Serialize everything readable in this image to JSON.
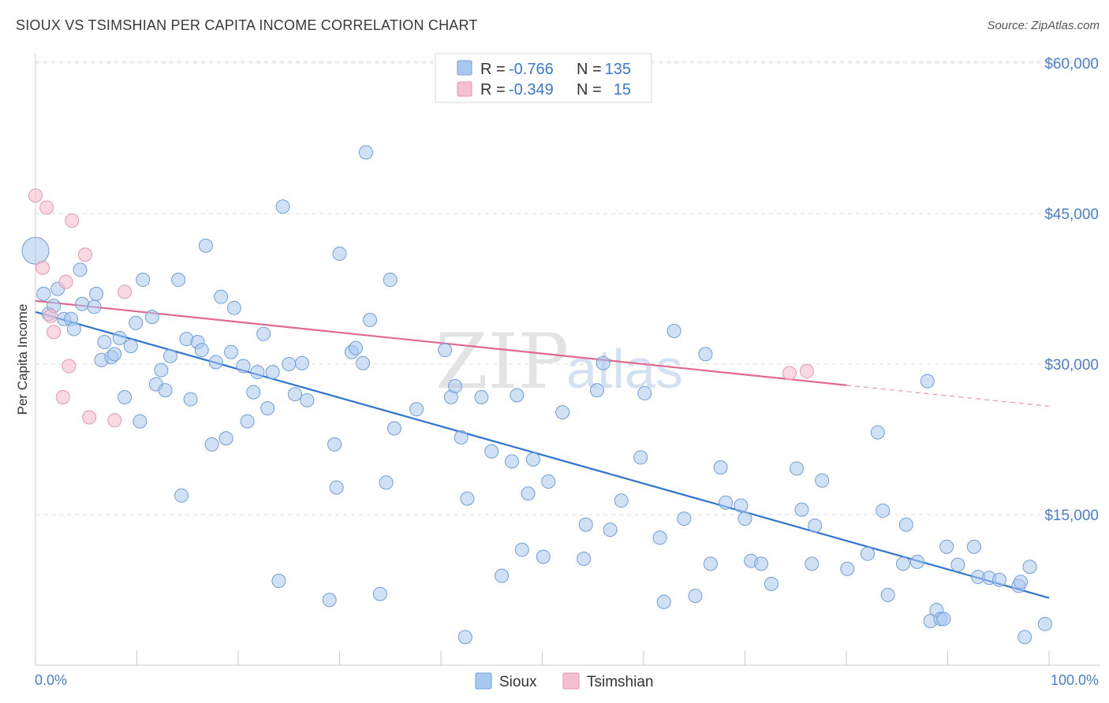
{
  "title": "SIOUX VS TSIMSHIAN PER CAPITA INCOME CORRELATION CHART",
  "source": "Source: ZipAtlas.com",
  "watermark": {
    "part1": "ZIP",
    "part2": "atlas"
  },
  "colors": {
    "sioux_fill": "#a9c8ef",
    "sioux_stroke": "#6f9fd8",
    "sioux_line": "#2f74d0",
    "tsimshian_fill": "#f6bfd0",
    "tsimshian_stroke": "#e995b2",
    "tsimshian_line": "#e2698f",
    "grid": "#dcdcdc",
    "tick_label": "#4a7fd0"
  },
  "legend": {
    "rows": [
      {
        "r_label": "R =",
        "r_value": "-0.766",
        "n_label": "N =",
        "n_value": "135"
      },
      {
        "r_label": "R =",
        "r_value": "-0.349",
        "n_label": "N =",
        "n_value": "15"
      }
    ]
  },
  "chart_data": {
    "type": "scatter",
    "title": "SIOUX VS TSIMSHIAN PER CAPITA INCOME CORRELATION CHART",
    "xlabel": "",
    "ylabel": "Per Capita Income",
    "xlim": [
      0,
      100
    ],
    "ylim": [
      0,
      63000
    ],
    "x_tick_labels": [
      "0.0%",
      "100.0%"
    ],
    "y_ticks": [
      15000,
      30000,
      45000,
      60000
    ],
    "y_tick_labels": [
      "$15,000",
      "$30,000",
      "$45,000",
      "$60,000"
    ],
    "grid": true,
    "legend_position": "bottom-center",
    "series": [
      {
        "name": "Sioux",
        "trend": {
          "x": [
            0,
            100
          ],
          "y": [
            35200,
            6700
          ],
          "extrapolated_to": 100
        },
        "points": [
          {
            "x": 0.0,
            "y": 41300,
            "big": true
          },
          {
            "x": 0.8,
            "y": 37000
          },
          {
            "x": 1.3,
            "y": 35000
          },
          {
            "x": 1.8,
            "y": 35800
          },
          {
            "x": 2.2,
            "y": 37500
          },
          {
            "x": 2.8,
            "y": 34500
          },
          {
            "x": 3.5,
            "y": 34500
          },
          {
            "x": 3.8,
            "y": 33500
          },
          {
            "x": 4.4,
            "y": 39400
          },
          {
            "x": 4.6,
            "y": 36000
          },
          {
            "x": 5.8,
            "y": 35700
          },
          {
            "x": 6.0,
            "y": 37000
          },
          {
            "x": 6.5,
            "y": 30400
          },
          {
            "x": 6.8,
            "y": 32200
          },
          {
            "x": 7.5,
            "y": 30700
          },
          {
            "x": 7.8,
            "y": 31000
          },
          {
            "x": 8.3,
            "y": 32600
          },
          {
            "x": 8.8,
            "y": 26700
          },
          {
            "x": 9.4,
            "y": 31800
          },
          {
            "x": 9.9,
            "y": 34100
          },
          {
            "x": 10.3,
            "y": 24300
          },
          {
            "x": 10.6,
            "y": 38400
          },
          {
            "x": 11.5,
            "y": 34700
          },
          {
            "x": 11.9,
            "y": 28000
          },
          {
            "x": 12.4,
            "y": 29400
          },
          {
            "x": 12.8,
            "y": 27400
          },
          {
            "x": 13.3,
            "y": 30800
          },
          {
            "x": 14.1,
            "y": 38400
          },
          {
            "x": 14.4,
            "y": 16900
          },
          {
            "x": 14.9,
            "y": 32500
          },
          {
            "x": 15.3,
            "y": 26500
          },
          {
            "x": 16.0,
            "y": 32200
          },
          {
            "x": 16.4,
            "y": 31400
          },
          {
            "x": 16.8,
            "y": 41800
          },
          {
            "x": 17.4,
            "y": 22000
          },
          {
            "x": 17.8,
            "y": 30200
          },
          {
            "x": 18.3,
            "y": 36700
          },
          {
            "x": 18.8,
            "y": 22600
          },
          {
            "x": 19.3,
            "y": 31200
          },
          {
            "x": 19.6,
            "y": 35600
          },
          {
            "x": 20.5,
            "y": 29800
          },
          {
            "x": 20.9,
            "y": 24300
          },
          {
            "x": 21.5,
            "y": 27200
          },
          {
            "x": 21.9,
            "y": 29200
          },
          {
            "x": 22.5,
            "y": 33000
          },
          {
            "x": 22.9,
            "y": 25600
          },
          {
            "x": 23.4,
            "y": 29200
          },
          {
            "x": 24.0,
            "y": 8400
          },
          {
            "x": 24.4,
            "y": 45700
          },
          {
            "x": 25.0,
            "y": 30000
          },
          {
            "x": 25.6,
            "y": 27000
          },
          {
            "x": 26.3,
            "y": 30100
          },
          {
            "x": 26.8,
            "y": 26400
          },
          {
            "x": 29.0,
            "y": 6500
          },
          {
            "x": 29.5,
            "y": 22000
          },
          {
            "x": 29.7,
            "y": 17700
          },
          {
            "x": 30.0,
            "y": 41000
          },
          {
            "x": 31.2,
            "y": 31200
          },
          {
            "x": 31.6,
            "y": 31600
          },
          {
            "x": 32.3,
            "y": 30100
          },
          {
            "x": 32.6,
            "y": 51100
          },
          {
            "x": 33.0,
            "y": 34400
          },
          {
            "x": 34.0,
            "y": 7100
          },
          {
            "x": 34.6,
            "y": 18200
          },
          {
            "x": 35.0,
            "y": 38400
          },
          {
            "x": 35.4,
            "y": 23600
          },
          {
            "x": 37.6,
            "y": 25500
          },
          {
            "x": 40.4,
            "y": 31400
          },
          {
            "x": 41.0,
            "y": 26700
          },
          {
            "x": 41.4,
            "y": 27800
          },
          {
            "x": 42.0,
            "y": 22700
          },
          {
            "x": 42.4,
            "y": 2800
          },
          {
            "x": 42.6,
            "y": 16600
          },
          {
            "x": 44.0,
            "y": 26700
          },
          {
            "x": 45.0,
            "y": 21300
          },
          {
            "x": 46.0,
            "y": 8900
          },
          {
            "x": 47.0,
            "y": 20300
          },
          {
            "x": 47.5,
            "y": 26900
          },
          {
            "x": 48.0,
            "y": 11500
          },
          {
            "x": 48.6,
            "y": 17100
          },
          {
            "x": 49.1,
            "y": 20500
          },
          {
            "x": 50.1,
            "y": 10800
          },
          {
            "x": 50.6,
            "y": 18300
          },
          {
            "x": 52.0,
            "y": 25200
          },
          {
            "x": 54.1,
            "y": 10600
          },
          {
            "x": 54.3,
            "y": 14000
          },
          {
            "x": 55.4,
            "y": 27400
          },
          {
            "x": 56.0,
            "y": 30100
          },
          {
            "x": 56.7,
            "y": 13500
          },
          {
            "x": 57.8,
            "y": 16400
          },
          {
            "x": 59.7,
            "y": 20700
          },
          {
            "x": 60.1,
            "y": 27100
          },
          {
            "x": 61.6,
            "y": 12700
          },
          {
            "x": 62.0,
            "y": 6300
          },
          {
            "x": 63.0,
            "y": 33300
          },
          {
            "x": 64.0,
            "y": 14600
          },
          {
            "x": 65.1,
            "y": 6900
          },
          {
            "x": 66.1,
            "y": 31000
          },
          {
            "x": 66.6,
            "y": 10100
          },
          {
            "x": 67.6,
            "y": 19700
          },
          {
            "x": 68.1,
            "y": 16200
          },
          {
            "x": 69.6,
            "y": 15900
          },
          {
            "x": 70.0,
            "y": 14600
          },
          {
            "x": 70.6,
            "y": 10400
          },
          {
            "x": 71.6,
            "y": 10100
          },
          {
            "x": 72.6,
            "y": 8100
          },
          {
            "x": 75.1,
            "y": 19600
          },
          {
            "x": 75.6,
            "y": 15500
          },
          {
            "x": 76.6,
            "y": 10100
          },
          {
            "x": 76.9,
            "y": 13900
          },
          {
            "x": 77.6,
            "y": 18400
          },
          {
            "x": 80.1,
            "y": 9600
          },
          {
            "x": 82.1,
            "y": 11100
          },
          {
            "x": 83.1,
            "y": 23200
          },
          {
            "x": 83.6,
            "y": 15400
          },
          {
            "x": 84.1,
            "y": 7000
          },
          {
            "x": 85.6,
            "y": 10100
          },
          {
            "x": 85.9,
            "y": 14000
          },
          {
            "x": 87.0,
            "y": 10300
          },
          {
            "x": 88.0,
            "y": 28300
          },
          {
            "x": 88.3,
            "y": 4400
          },
          {
            "x": 88.9,
            "y": 5500
          },
          {
            "x": 89.3,
            "y": 4600
          },
          {
            "x": 89.6,
            "y": 4600
          },
          {
            "x": 89.9,
            "y": 11800
          },
          {
            "x": 91.0,
            "y": 10000
          },
          {
            "x": 92.6,
            "y": 11800
          },
          {
            "x": 93.0,
            "y": 8800
          },
          {
            "x": 94.1,
            "y": 8700
          },
          {
            "x": 95.1,
            "y": 8500
          },
          {
            "x": 97.0,
            "y": 7900
          },
          {
            "x": 97.2,
            "y": 8300
          },
          {
            "x": 97.6,
            "y": 2800
          },
          {
            "x": 98.1,
            "y": 9800
          },
          {
            "x": 99.6,
            "y": 4100
          }
        ]
      },
      {
        "name": "Tsimshian",
        "trend": {
          "x": [
            0,
            100
          ],
          "y": [
            36300,
            25800
          ],
          "solid_until": 80
        },
        "points": [
          {
            "x": 0.0,
            "y": 46800
          },
          {
            "x": 0.7,
            "y": 39600
          },
          {
            "x": 1.1,
            "y": 45600
          },
          {
            "x": 1.5,
            "y": 34800
          },
          {
            "x": 1.8,
            "y": 33200
          },
          {
            "x": 2.7,
            "y": 26700
          },
          {
            "x": 3.0,
            "y": 38200
          },
          {
            "x": 3.3,
            "y": 29800
          },
          {
            "x": 3.6,
            "y": 44300
          },
          {
            "x": 4.9,
            "y": 40900
          },
          {
            "x": 5.3,
            "y": 24700
          },
          {
            "x": 7.8,
            "y": 24400
          },
          {
            "x": 8.8,
            "y": 37200
          },
          {
            "x": 74.4,
            "y": 29100
          },
          {
            "x": 76.1,
            "y": 29300
          }
        ]
      }
    ]
  }
}
